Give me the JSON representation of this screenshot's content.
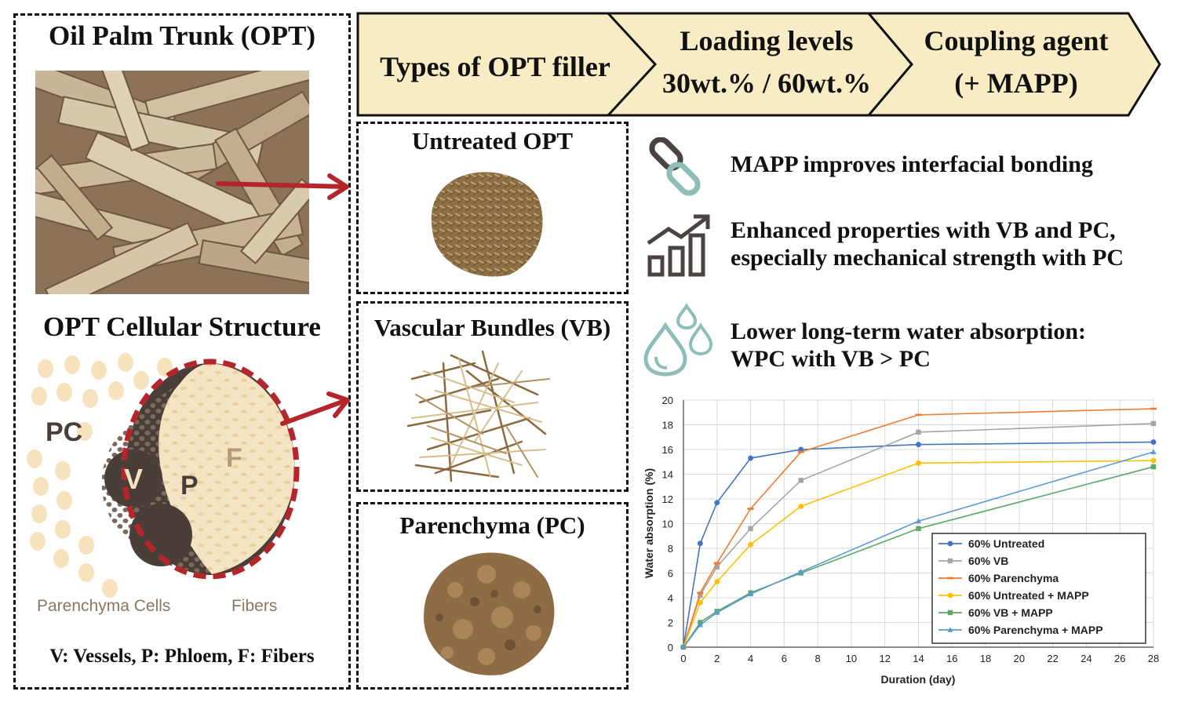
{
  "left_panel": {
    "trunk_title": "Oil Palm Trunk (OPT)",
    "cell_title": "OPT Cellular Structure",
    "labels": {
      "pc": "PC",
      "v": "V",
      "p": "P",
      "f": "F"
    },
    "caption_parenchyma": "Parenchyma Cells",
    "caption_fibers": "Fibers",
    "legend": "V: Vessels, P: Phloem, F: Fibers"
  },
  "flow": {
    "step1": "Types of OPT filler",
    "step2_line1": "Loading levels",
    "step2_line2": "30wt.% / 60wt.%",
    "step3_line1": "Coupling agent",
    "step3_line2": "(+ MAPP)",
    "fill_color": "#f7ecc4"
  },
  "fillers": [
    {
      "label": "Untreated OPT"
    },
    {
      "label": "Vascular Bundles (VB)"
    },
    {
      "label": "Parenchyma (PC)"
    }
  ],
  "findings": [
    {
      "icon": "chain-link-icon",
      "lines": [
        "MAPP improves interfacial bonding"
      ]
    },
    {
      "icon": "growth-chart-icon",
      "lines": [
        "Enhanced properties with VB and PC,",
        "especially mechanical strength with PC"
      ]
    },
    {
      "icon": "water-drops-icon",
      "lines": [
        "Lower long-term water absorption:",
        "WPC with VB > PC"
      ]
    }
  ],
  "colors": {
    "arrow": "#b5262c",
    "icon_dark": "#4a4341",
    "icon_teal": "#8fbdb8",
    "cell_dark": "#4a3f38",
    "cell_light": "#f5e4c3"
  },
  "chart_data": {
    "type": "line",
    "xlabel": "Duration (day)",
    "ylabel": "Water absorption (%)",
    "xlim": [
      0,
      28
    ],
    "ylim": [
      0,
      20
    ],
    "xticks": [
      0,
      2,
      4,
      6,
      8,
      10,
      12,
      14,
      16,
      18,
      20,
      22,
      24,
      26,
      28
    ],
    "yticks": [
      0,
      2,
      4,
      6,
      8,
      10,
      12,
      14,
      16,
      18,
      20
    ],
    "grid": true,
    "legend_position": "bottom-right",
    "x": [
      0,
      1,
      2,
      4,
      7,
      14,
      28
    ],
    "series": [
      {
        "name": "60% Untreated",
        "color": "#4472c4",
        "marker": "circle",
        "values": [
          0,
          8.4,
          11.7,
          15.3,
          16.0,
          16.4,
          16.6
        ]
      },
      {
        "name": "60% VB",
        "color": "#a5a5a5",
        "marker": "square",
        "values": [
          0,
          4.2,
          6.5,
          9.6,
          13.5,
          17.4,
          18.1
        ]
      },
      {
        "name": "60% Parenchyma",
        "color": "#ed7d31",
        "marker": "dash",
        "values": [
          0,
          4.4,
          6.8,
          11.2,
          15.8,
          18.8,
          19.3
        ]
      },
      {
        "name": "60% Untreated + MAPP",
        "color": "#ffc000",
        "marker": "circle",
        "values": [
          0,
          3.6,
          5.3,
          8.3,
          11.4,
          14.9,
          15.1
        ]
      },
      {
        "name": "60% VB + MAPP",
        "color": "#5fa868",
        "marker": "square",
        "values": [
          0,
          2.0,
          2.9,
          4.4,
          6.0,
          9.6,
          14.6
        ]
      },
      {
        "name": "60% Parenchyma + MAPP",
        "color": "#5b9bd5",
        "marker": "triangle",
        "values": [
          0,
          1.8,
          2.8,
          4.3,
          6.1,
          10.2,
          15.8
        ]
      }
    ]
  }
}
